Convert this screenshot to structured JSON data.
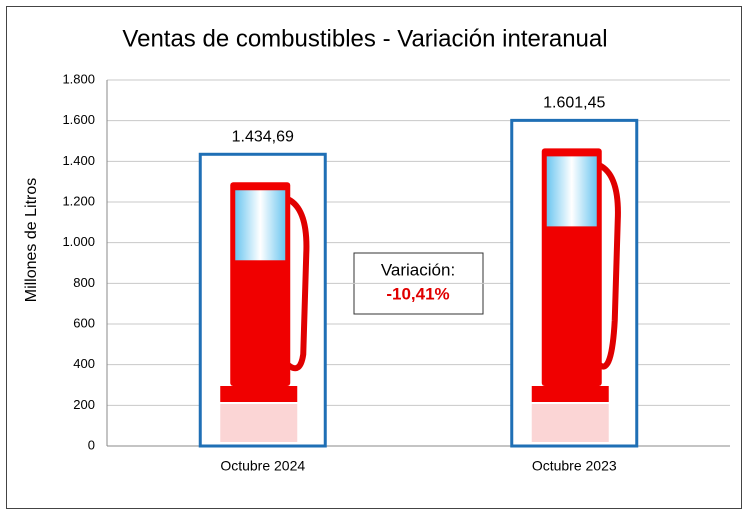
{
  "chart_data": {
    "type": "bar",
    "title": "Ventas de combustibles - Variación interanual",
    "y_label": "Millones de Litros",
    "categories": [
      "Octubre 2024",
      "Octubre 2023"
    ],
    "values": [
      1434.69,
      1601.45
    ],
    "value_labels": [
      "1.434,69",
      "1.601,45"
    ],
    "color": "#1f6fb5",
    "ylim": [
      0,
      1800
    ],
    "yticks": [
      0,
      200,
      400,
      600,
      800,
      {
        "value": 1000,
        "label": "1.000"
      },
      {
        "value": 1200,
        "label": "1.200"
      },
      {
        "value": 1400,
        "label": "1.400"
      },
      {
        "value": 1600,
        "label": "1.600"
      },
      {
        "value": 1800,
        "label": "1.800"
      }
    ],
    "grid": true,
    "annotation": {
      "title": "Variación:",
      "value": "-10,41%",
      "value_color": "#e00000"
    }
  }
}
